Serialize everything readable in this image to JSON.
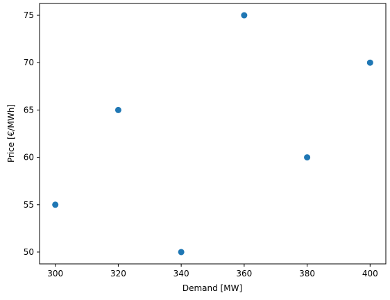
{
  "chart_data": {
    "type": "scatter",
    "title": "",
    "xlabel": "Demand [MW]",
    "ylabel": "Price [€/MWh]",
    "x": [
      300,
      320,
      340,
      360,
      380,
      400
    ],
    "y": [
      55,
      65,
      50,
      75,
      60,
      70
    ],
    "xlim": [
      295,
      405
    ],
    "ylim": [
      48.75,
      76.25
    ],
    "xticks": [
      300,
      320,
      340,
      360,
      380,
      400
    ],
    "yticks": [
      50,
      55,
      60,
      65,
      70,
      75
    ],
    "grid": false,
    "legend": "none",
    "marker_color": "#1f77b4"
  }
}
